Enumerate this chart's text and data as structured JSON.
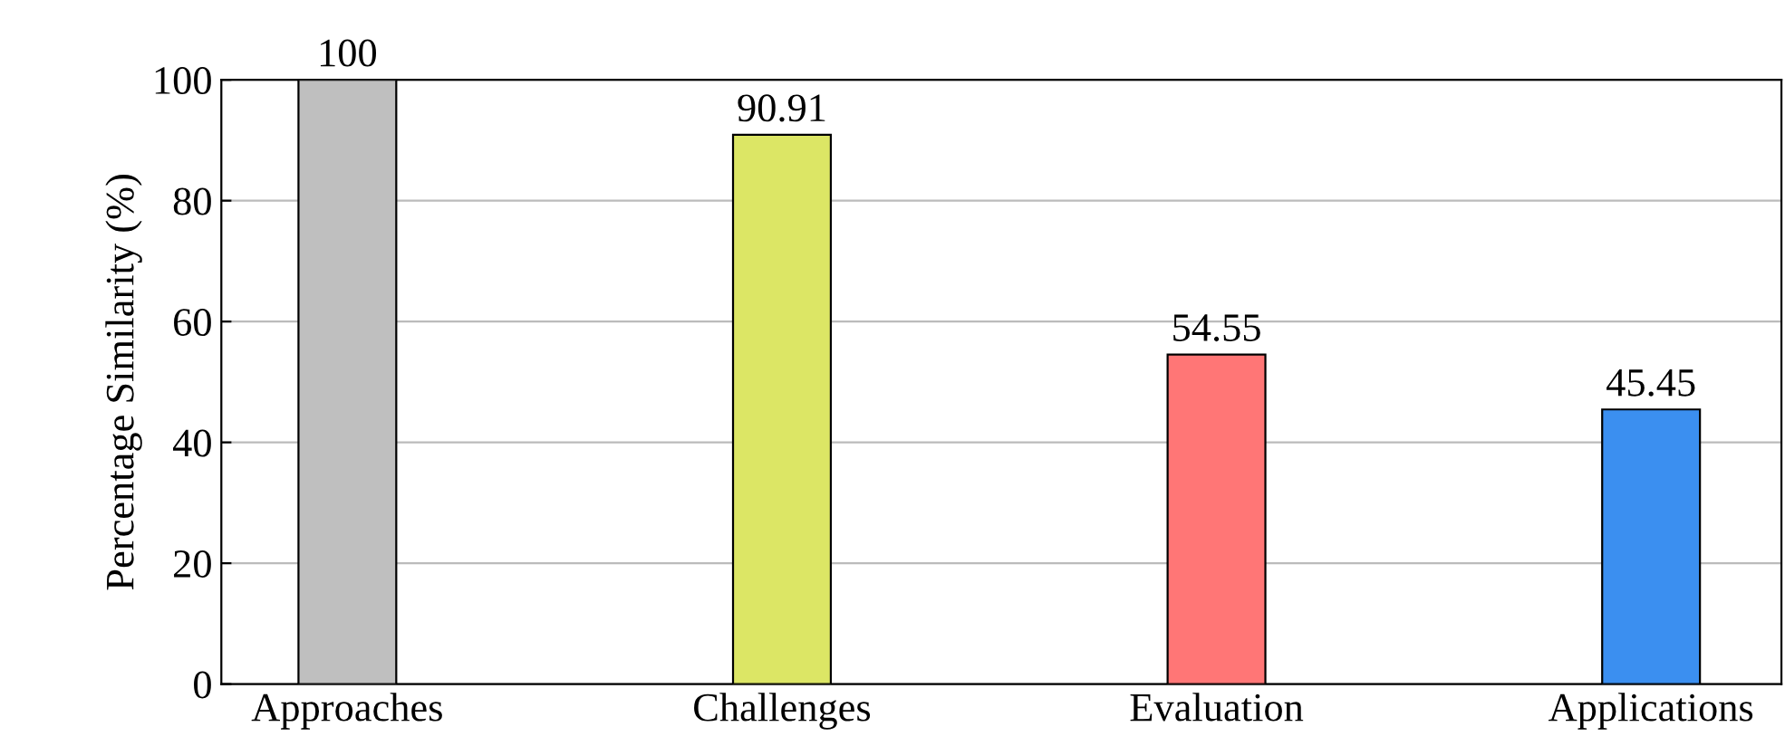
{
  "chart_data": {
    "type": "bar",
    "ylabel": "Percentage Similarity (%)",
    "categories": [
      "Approaches",
      "Challenges",
      "Evaluation",
      "Applications"
    ],
    "values": [
      100,
      90.91,
      54.55,
      45.45
    ],
    "colors": [
      "#bfbfbf",
      "#dce665",
      "#ff7676",
      "#3b8ff0"
    ],
    "ylim": [
      0,
      100
    ],
    "yticks": [
      0,
      20,
      40,
      60,
      80,
      100
    ],
    "grid": "y",
    "data_labels": true
  }
}
